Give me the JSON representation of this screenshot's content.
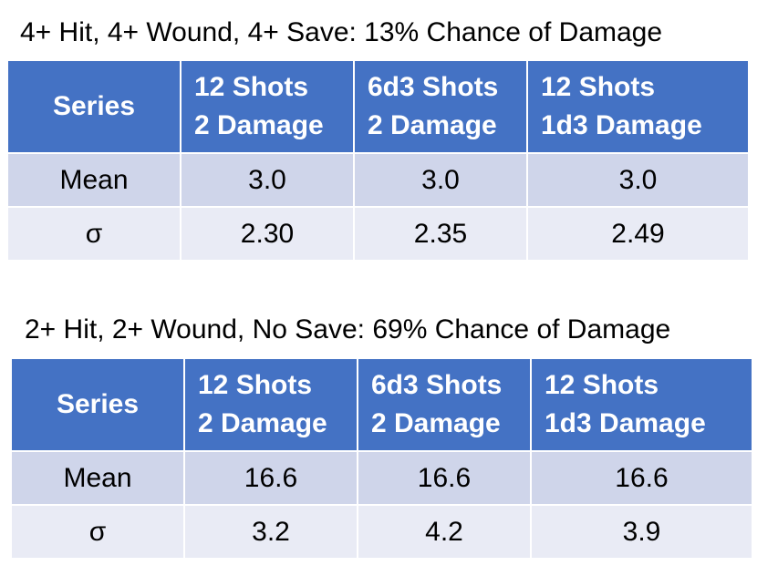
{
  "tables": [
    {
      "caption": "4+ Hit, 4+ Wound, 4+ Save: 13% Chance of Damage",
      "corner_header": "Series",
      "columns": [
        {
          "line1": "12 Shots",
          "line2": "2 Damage"
        },
        {
          "line1": "6d3 Shots",
          "line2": "2 Damage"
        },
        {
          "line1": "12 Shots",
          "line2": "1d3 Damage"
        }
      ],
      "rows": [
        {
          "label": "Mean",
          "values": [
            "3.0",
            "3.0",
            "3.0"
          ]
        },
        {
          "label": "σ",
          "values": [
            "2.30",
            "2.35",
            "2.49"
          ]
        }
      ]
    },
    {
      "caption": "2+ Hit, 2+ Wound, No Save: 69% Chance of Damage",
      "corner_header": "Series",
      "columns": [
        {
          "line1": "12 Shots",
          "line2": "2 Damage"
        },
        {
          "line1": "6d3 Shots",
          "line2": "2 Damage"
        },
        {
          "line1": "12 Shots",
          "line2": "1d3 Damage"
        }
      ],
      "rows": [
        {
          "label": "Mean",
          "values": [
            "16.6",
            "16.6",
            "16.6"
          ]
        },
        {
          "label": "σ",
          "values": [
            "3.2",
            "4.2",
            "3.9"
          ]
        }
      ]
    }
  ],
  "colors": {
    "header": "#4472c4",
    "row_dark": "#cfd5ea",
    "row_light": "#e9ebf5"
  }
}
